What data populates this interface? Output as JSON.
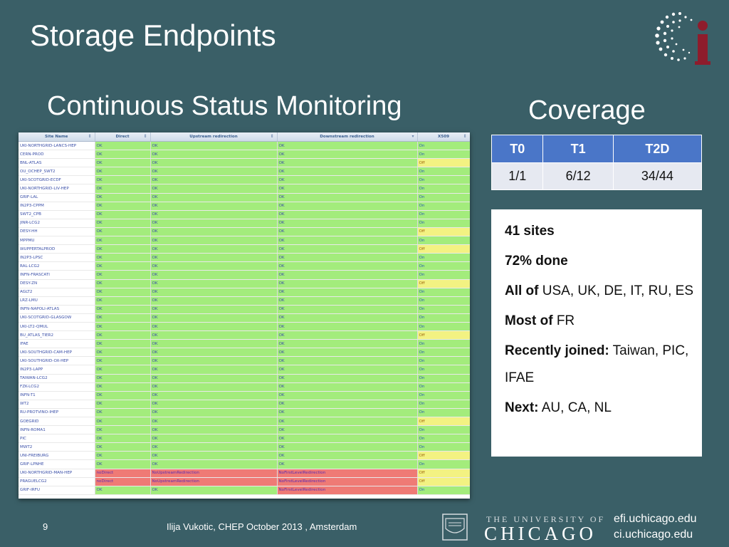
{
  "slide": {
    "title": "Storage Endpoints",
    "subtitle_left": "Continuous Status Monitoring",
    "subtitle_right": "Coverage",
    "page_number": "9",
    "footer": "Ilija Vukotic, CHEP October 2013 , Amsterdam",
    "university_line1": "THE UNIVERSITY OF",
    "university_line2": "CHICAGO",
    "url1": "efi.uchicago.edu",
    "url2": "ci.uchicago.edu"
  },
  "status_table": {
    "headers": [
      "Site Name",
      "Direct",
      "Upstream redirection",
      "Downstream redirection",
      "X509"
    ],
    "rows": [
      [
        "UKI-NORTHGRID-LANCS-HEP",
        "OK",
        "OK",
        "OK",
        "On"
      ],
      [
        "CERN-PROD",
        "OK",
        "OK",
        "OK",
        "On"
      ],
      [
        "BNL-ATLAS",
        "OK",
        "OK",
        "OK",
        "Off"
      ],
      [
        "OU_OCHEP_SWT2",
        "OK",
        "OK",
        "OK",
        "On"
      ],
      [
        "UKI-SCOTGRID-ECDF",
        "OK",
        "OK",
        "OK",
        "On"
      ],
      [
        "UKI-NORTHGRID-LIV-HEP",
        "OK",
        "OK",
        "OK",
        "On"
      ],
      [
        "GRIF-LAL",
        "OK",
        "OK",
        "OK",
        "On"
      ],
      [
        "IN2P3-CPPM",
        "OK",
        "OK",
        "OK",
        "On"
      ],
      [
        "SWT2_CPB",
        "OK",
        "OK",
        "OK",
        "On"
      ],
      [
        "JINR-LCG2",
        "OK",
        "OK",
        "OK",
        "On"
      ],
      [
        "DESY-HH",
        "OK",
        "OK",
        "OK",
        "Off"
      ],
      [
        "MPPMU",
        "OK",
        "OK",
        "OK",
        "On"
      ],
      [
        "WUPPERTALPROD",
        "OK",
        "OK",
        "OK",
        "Off"
      ],
      [
        "IN2P3-LPSC",
        "OK",
        "OK",
        "OK",
        "On"
      ],
      [
        "RAL-LCG2",
        "OK",
        "OK",
        "OK",
        "On"
      ],
      [
        "INFN-FRASCATI",
        "OK",
        "OK",
        "OK",
        "On"
      ],
      [
        "DESY-ZN",
        "OK",
        "OK",
        "OK",
        "Off"
      ],
      [
        "AGLT2",
        "OK",
        "OK",
        "OK",
        "On"
      ],
      [
        "LRZ-LMU",
        "OK",
        "OK",
        "OK",
        "On"
      ],
      [
        "INFN-NAPOLI-ATLAS",
        "OK",
        "OK",
        "OK",
        "On"
      ],
      [
        "UKI-SCOTGRID-GLASGOW",
        "OK",
        "OK",
        "OK",
        "On"
      ],
      [
        "UKI-LT2-QMUL",
        "OK",
        "OK",
        "OK",
        "On"
      ],
      [
        "BU_ATLAS_TIER2",
        "OK",
        "OK",
        "OK",
        "Off"
      ],
      [
        "IFAE",
        "OK",
        "OK",
        "OK",
        "On"
      ],
      [
        "UKI-SOUTHGRID-CAM-HEP",
        "OK",
        "OK",
        "OK",
        "On"
      ],
      [
        "UKI-SOUTHGRID-OX-HEP",
        "OK",
        "OK",
        "OK",
        "On"
      ],
      [
        "IN2P3-LAPP",
        "OK",
        "OK",
        "OK",
        "On"
      ],
      [
        "TAIWAN-LCG2",
        "OK",
        "OK",
        "OK",
        "On"
      ],
      [
        "FZK-LCG2",
        "OK",
        "OK",
        "OK",
        "On"
      ],
      [
        "INFN-T1",
        "OK",
        "OK",
        "OK",
        "On"
      ],
      [
        "WT2",
        "OK",
        "OK",
        "OK",
        "On"
      ],
      [
        "RU-PROTVINO-IHEP",
        "OK",
        "OK",
        "OK",
        "On"
      ],
      [
        "GOEGRID",
        "OK",
        "OK",
        "OK",
        "Off"
      ],
      [
        "INFN-ROMA1",
        "OK",
        "OK",
        "OK",
        "On"
      ],
      [
        "PIC",
        "OK",
        "OK",
        "OK",
        "On"
      ],
      [
        "MWT2",
        "OK",
        "OK",
        "OK",
        "On"
      ],
      [
        "UNI-FREIBURG",
        "OK",
        "OK",
        "OK",
        "Off"
      ],
      [
        "GRIF-LPNHE",
        "OK",
        "OK",
        "OK",
        "On"
      ],
      [
        "UKI-NORTHGRID-MAN-HEP",
        "noDirect",
        "NoUpstreamRedirection",
        "NoFirstLevelRedirection",
        "Off"
      ],
      [
        "PRAGUELCG2",
        "noDirect",
        "NoUpstreamRedirection",
        "NoFirstLevelRedirection",
        "Off"
      ],
      [
        "GRIF-IRFU",
        "OK",
        "OK",
        "NoFirstLevelRedirection",
        "On"
      ]
    ]
  },
  "coverage": {
    "headers": [
      "T0",
      "T1",
      "T2D"
    ],
    "values": [
      "1/1",
      "6/12",
      "34/44"
    ]
  },
  "facts": {
    "sites": "41 sites",
    "done": "72% done",
    "all_label": "All of",
    "all_value": " USA, UK, DE, IT, RU, ES",
    "most_label": "Most of",
    "most_value": " FR",
    "recent_label": "Recently joined:",
    "recent_value": " Taiwan, PIC, IFAE",
    "next_label": "Next:",
    "next_value": " AU, CA, NL"
  },
  "colors": {
    "background": "#3a5f67",
    "ok_cell": "#a3ec7c",
    "off_cell": "#f3f282",
    "error_cell": "#ef7a75",
    "coverage_header": "#4a76c8"
  },
  "icons": [
    "ci-logo-icon",
    "university-seal-icon",
    "sort-icon"
  ]
}
